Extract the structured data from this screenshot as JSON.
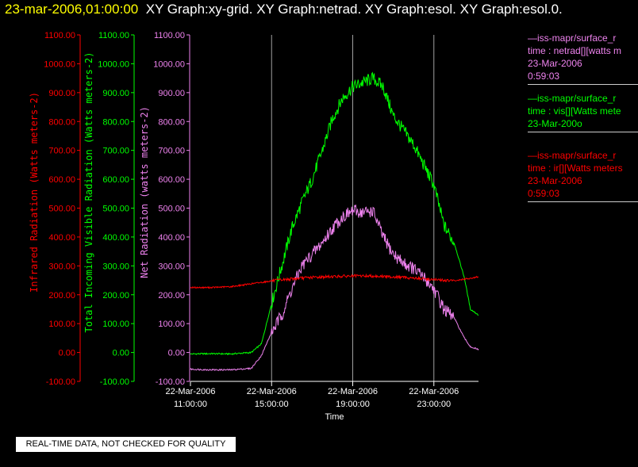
{
  "header": {
    "timestamp": "23-mar-2006,01:00:00",
    "graphs": "XY Graph:xy-grid.  XY Graph:netrad.  XY Graph:esol.  XY Graph:esol.0."
  },
  "colors": {
    "red": "#ff0000",
    "green": "#00ff00",
    "violet": "#ee82ee",
    "grid": "#a0a0a0",
    "white": "#ffffff"
  },
  "notice": "REAL-TIME DATA, NOT CHECKED FOR QUALITY",
  "legend": [
    {
      "lines": [
        "—iss-mapr/surface_r",
        "time : netrad[][watts m",
        "23-Mar-2006",
        "0:59:03"
      ],
      "color": "#ee82ee"
    },
    {
      "lines": [
        "—iss-mapr/surface_r",
        "time : vis[][Watts mete",
        "23-Mar-200o"
      ],
      "color": "#00ff00"
    },
    {
      "lines": [
        "—iss-mapr/surface_r",
        "time : ir[][Watts meters",
        "23-Mar-2006",
        "0:59:03"
      ],
      "color": "#ff0000"
    }
  ],
  "chart_data": {
    "type": "line",
    "xlabel": "Time",
    "x_ticks": [
      {
        "line1": "22-Mar-2006",
        "line2": "11:00:00",
        "hour": 11
      },
      {
        "line1": "22-Mar-2006",
        "line2": "15:00:00",
        "hour": 15
      },
      {
        "line1": "22-Mar-2006",
        "line2": "19:00:00",
        "hour": 19
      },
      {
        "line1": "22-Mar-2006",
        "line2": "23:00:00",
        "hour": 23
      }
    ],
    "xlim": [
      11,
      25.2
    ],
    "ylim": [
      -100,
      1100
    ],
    "y_ticks": [
      "-100.00",
      "0.00",
      "100.00",
      "200.00",
      "300.00",
      "400.00",
      "500.00",
      "600.00",
      "700.00",
      "800.00",
      "900.00",
      "1000.00",
      "1100.00"
    ],
    "y_axes": [
      {
        "label": "Infrared Radiation (Watts meters-2)",
        "color": "#ff0000"
      },
      {
        "label": "Total Incoming Visible Radiation (Watts meters-2)",
        "color": "#00ff00"
      },
      {
        "label": "Net Radiation (watts meters-2)",
        "color": "#ee82ee"
      }
    ],
    "grid": "vertical",
    "series": [
      {
        "color": "#00ff00",
        "points": [
          [
            11,
            -5
          ],
          [
            12,
            -4
          ],
          [
            13,
            -5
          ],
          [
            14,
            0
          ],
          [
            14.5,
            30
          ],
          [
            15,
            170
          ],
          [
            15.5,
            300
          ],
          [
            16,
            430
          ],
          [
            16.5,
            520
          ],
          [
            17,
            600
          ],
          [
            17.5,
            700
          ],
          [
            18,
            810
          ],
          [
            18.5,
            880
          ],
          [
            19,
            920
          ],
          [
            19.5,
            935
          ],
          [
            20,
            950
          ],
          [
            20.5,
            920
          ],
          [
            21,
            820
          ],
          [
            21.5,
            770
          ],
          [
            22,
            720
          ],
          [
            22.5,
            650
          ],
          [
            23,
            580
          ],
          [
            23.5,
            440
          ],
          [
            24,
            380
          ],
          [
            24.5,
            260
          ],
          [
            24.8,
            150
          ],
          [
            25.2,
            130
          ]
        ]
      },
      {
        "color": "#ee82ee",
        "points": [
          [
            11,
            -58
          ],
          [
            12,
            -60
          ],
          [
            13,
            -60
          ],
          [
            14,
            -55
          ],
          [
            14.5,
            -10
          ],
          [
            15,
            70
          ],
          [
            15.5,
            130
          ],
          [
            16,
            220
          ],
          [
            16.5,
            300
          ],
          [
            17,
            340
          ],
          [
            17.5,
            380
          ],
          [
            18,
            430
          ],
          [
            18.5,
            470
          ],
          [
            19,
            490
          ],
          [
            19.5,
            485
          ],
          [
            20,
            490
          ],
          [
            20.5,
            400
          ],
          [
            21,
            340
          ],
          [
            21.5,
            310
          ],
          [
            22,
            290
          ],
          [
            22.5,
            260
          ],
          [
            23,
            220
          ],
          [
            23.5,
            150
          ],
          [
            24,
            120
          ],
          [
            24.5,
            50
          ],
          [
            24.8,
            20
          ],
          [
            25.2,
            10
          ]
        ]
      },
      {
        "color": "#ff0000",
        "points": [
          [
            11,
            225
          ],
          [
            12,
            225
          ],
          [
            13,
            228
          ],
          [
            14,
            238
          ],
          [
            15,
            248
          ],
          [
            16,
            255
          ],
          [
            17,
            260
          ],
          [
            18,
            263
          ],
          [
            19,
            265
          ],
          [
            20,
            265
          ],
          [
            21,
            262
          ],
          [
            22,
            258
          ],
          [
            23,
            252
          ],
          [
            24,
            248
          ],
          [
            25.2,
            262
          ]
        ]
      }
    ]
  }
}
